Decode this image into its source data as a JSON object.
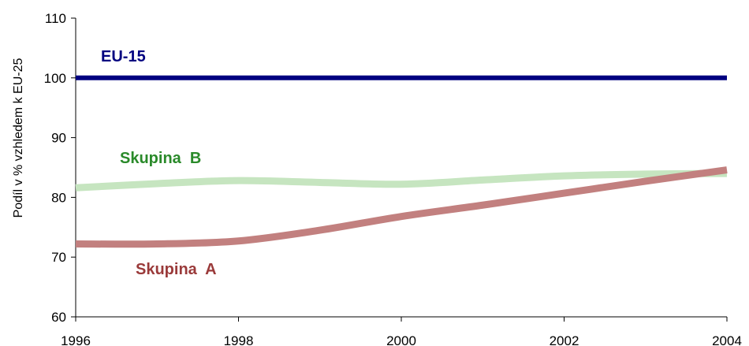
{
  "chart_data": {
    "type": "line",
    "title": "",
    "xlabel": "",
    "ylabel": "Podíl v % vzhledem k EU-25",
    "xlim": [
      1996,
      2004
    ],
    "ylim": [
      60,
      110
    ],
    "x_ticks": [
      "1996",
      "1998",
      "2000",
      "2002",
      "2004"
    ],
    "y_ticks": [
      "60",
      "70",
      "80",
      "90",
      "100",
      "110"
    ],
    "grid": false,
    "legend": "none (series labelled directly on the plot)",
    "series": [
      {
        "name": "EU-15",
        "color": "#000080",
        "x": [
          1996,
          1997,
          1998,
          1999,
          2000,
          2001,
          2002,
          2003,
          2004
        ],
        "values": [
          100,
          100,
          100,
          100,
          100,
          100,
          100,
          100,
          100
        ]
      },
      {
        "name": "Skupina  B",
        "color": "#c6e5c0",
        "x": [
          1996,
          1997,
          1998,
          1999,
          2000,
          2001,
          2002,
          2003,
          2004
        ],
        "values": [
          81.6,
          82.3,
          82.8,
          82.5,
          82.2,
          82.9,
          83.6,
          83.9,
          84.0
        ]
      },
      {
        "name": "Skupina  A",
        "color": "#c2807f",
        "x": [
          1996,
          1997,
          1998,
          1999,
          2000,
          2001,
          2002,
          2003,
          2004
        ],
        "values": [
          72.2,
          72.2,
          72.7,
          74.5,
          76.8,
          78.7,
          80.7,
          82.7,
          84.6
        ]
      }
    ],
    "series_labels": [
      {
        "text": "EU-15",
        "color": "#000080"
      },
      {
        "text": "Skupina  B",
        "color": "#2a8a2a"
      },
      {
        "text": "Skupina  A",
        "color": "#9a3a3a"
      }
    ]
  }
}
